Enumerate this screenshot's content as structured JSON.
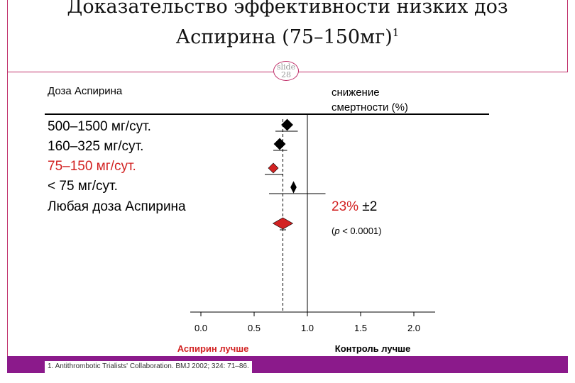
{
  "title": {
    "line1": "Доказательство эффективности низких доз",
    "line2": "Аспирина (75–150мг)",
    "sup": "1"
  },
  "slide_badge": {
    "word": "slide",
    "number": "28"
  },
  "header": {
    "left": "Доза Аспирина",
    "right_line1": "снижение",
    "right_line2": "смертности (%)"
  },
  "result": {
    "percent": "23%",
    "pm": " ±2",
    "p_open": "(",
    "p_letter": "p",
    "p_rest": " < 0.0001)"
  },
  "favor_left": "Аспирин лучше",
  "favor_right": "Контроль лучше",
  "footnote": "1. Antithrombotic Trialists' Collaboration. BMJ 2002; 324: 71–86.",
  "colors": {
    "highlight": "#d22222",
    "frame": "#c0306a",
    "footer": "#8b1a8b"
  },
  "chart_data": {
    "type": "forest",
    "xlim": [
      -0.1,
      2.2
    ],
    "x_ticks": [
      0.0,
      0.5,
      1.0,
      1.5,
      2.0
    ],
    "x_tick_labels": [
      "0.0",
      "0.5",
      "1.0",
      "1.5",
      "2.0"
    ],
    "reference_line": 1.0,
    "pooled_line": 0.77,
    "rows": [
      {
        "label": "500–1500 мг/сут.",
        "estimate": 0.81,
        "ci": [
          0.7,
          0.91
        ],
        "highlight": false,
        "marker": "diamond"
      },
      {
        "label": "160–325 мг/сут.",
        "estimate": 0.74,
        "ci": [
          0.68,
          0.81
        ],
        "highlight": false,
        "marker": "diamond"
      },
      {
        "label": "75–150 мг/сут.",
        "estimate": 0.68,
        "ci": [
          0.6,
          0.77
        ],
        "highlight": true,
        "marker": "diamond"
      },
      {
        "label": "< 75 мг/сут.",
        "estimate": 0.87,
        "ci": [
          0.64,
          1.17
        ],
        "highlight": false,
        "marker": "diamond"
      },
      {
        "label": "Любая доза Аспирина",
        "estimate": 0.77,
        "ci": [
          0.74,
          0.8
        ],
        "highlight": true,
        "marker": "pooled"
      }
    ]
  }
}
